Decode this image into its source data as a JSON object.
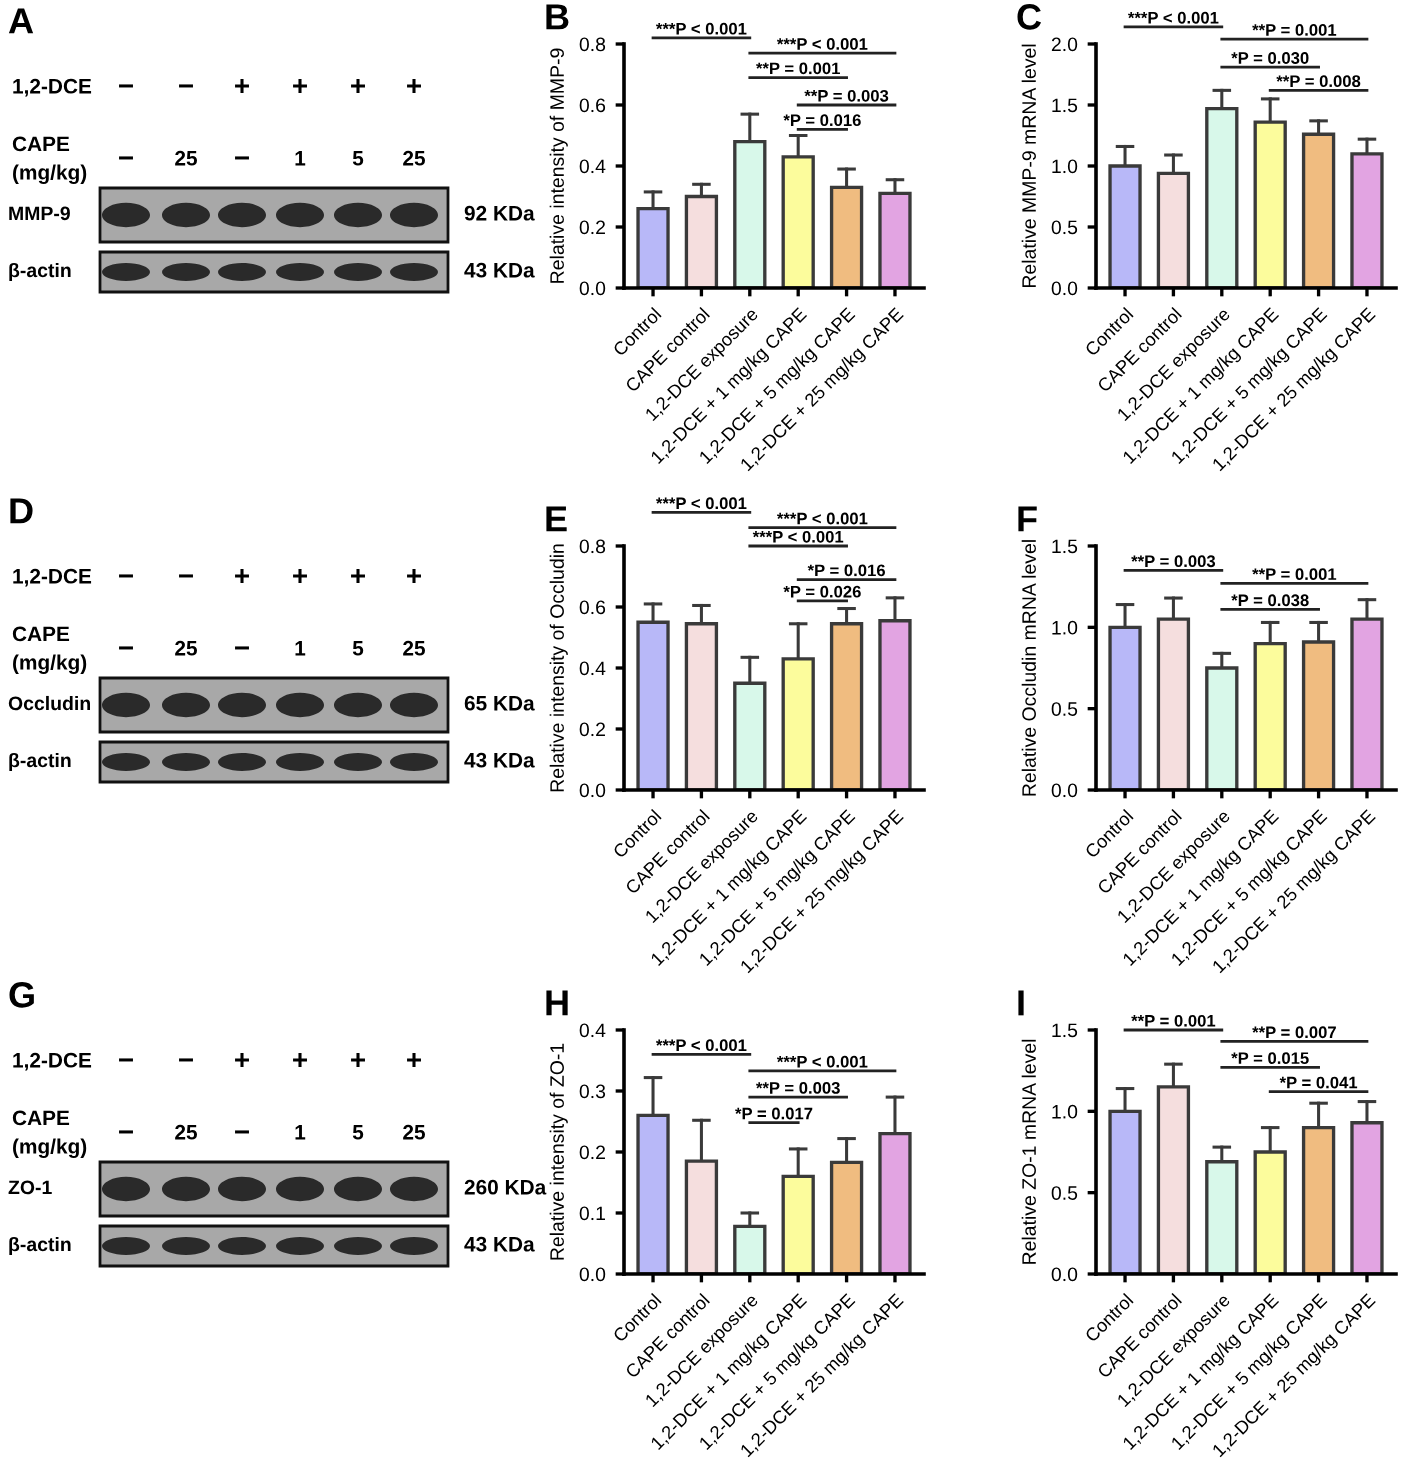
{
  "chart_data": [
    {
      "type": "other",
      "title": "A",
      "annotations": [
        "1,2-DCE",
        "−",
        "−",
        "+",
        "+",
        "+",
        "+",
        "CAPE\n(mg/kg)",
        "−",
        "25",
        "−",
        "1",
        "5",
        "25",
        "MMP-9",
        "92 KDa",
        "β-actin",
        "43 KDa"
      ]
    },
    {
      "type": "bar",
      "title": "B",
      "ylabel": "Relative intensity of MMP-9",
      "categories": [
        "Control",
        "CAPE control",
        "1,2-DCE exposure",
        "1,2-DCE + 1 mg/kg CAPE",
        "1,2-DCE + 5 mg/kg CAPE",
        "1,2-DCE + 25 mg/kg CAPE"
      ],
      "values": [
        0.26,
        0.3,
        0.48,
        0.43,
        0.33,
        0.31
      ],
      "colors": [
        "#b8b8f8",
        "#f5dede",
        "#d8f8ea",
        "#fcfc9c",
        "#f0bc80",
        "#e2a4e2"
      ],
      "errors": [
        [
          0.26,
          0.315
        ],
        [
          0.3,
          0.34
        ],
        [
          0.48,
          0.57
        ],
        [
          0.43,
          0.5
        ],
        [
          0.33,
          0.39
        ],
        [
          0.31,
          0.355
        ]
      ],
      "ylim": [
        0,
        0.8
      ],
      "yticks": [
        {
          "value": 0,
          "label": "0.0"
        },
        0.2,
        0.4,
        0.6,
        0.8
      ],
      "annotations": [
        "***P < 0.001",
        "***P < 0.001",
        "**P = 0.001",
        "**P = 0.003",
        "*P = 0.016"
      ]
    },
    {
      "type": "bar",
      "title": "C",
      "ylabel": "Relative MMP-9 mRNA level",
      "categories": [
        "Control",
        "CAPE control",
        "1,2-DCE exposure",
        "1,2-DCE + 1 mg/kg CAPE",
        "1,2-DCE + 5 mg/kg CAPE",
        "1,2-DCE + 25 mg/kg CAPE"
      ],
      "values": [
        1.0,
        0.94,
        1.47,
        1.36,
        1.26,
        1.1
      ],
      "colors": [
        "#b8b8f8",
        "#f5dede",
        "#d8f8ea",
        "#fcfc9c",
        "#f0bc80",
        "#e2a4e2"
      ],
      "errors": [
        [
          1.0,
          1.16
        ],
        [
          0.94,
          1.09
        ],
        [
          1.47,
          1.62
        ],
        [
          1.36,
          1.55
        ],
        [
          1.26,
          1.37
        ],
        [
          1.1,
          1.22
        ]
      ],
      "ylim": [
        0,
        2.0
      ],
      "yticks": [
        {
          "value": 0,
          "label": "0.0"
        },
        0.5,
        {
          "value": 1,
          "label": "1.0"
        },
        1.5,
        {
          "value": 2,
          "label": "2.0"
        }
      ],
      "annotations": [
        "***P < 0.001",
        "**P = 0.001",
        "*P = 0.030",
        "**P = 0.008"
      ]
    },
    {
      "type": "other",
      "title": "D",
      "annotations": [
        "1,2-DCE",
        "−",
        "−",
        "+",
        "+",
        "+",
        "+",
        "CAPE\n(mg/kg)",
        "−",
        "25",
        "−",
        "1",
        "5",
        "25",
        "Occludin",
        "65 KDa",
        "β-actin",
        "43 KDa"
      ]
    },
    {
      "type": "bar",
      "title": "E",
      "ylabel": "Relative intensity of Occludin",
      "categories": [
        "Control",
        "CAPE control",
        "1,2-DCE exposure",
        "1,2-DCE + 1 mg/kg CAPE",
        "1,2-DCE + 5 mg/kg CAPE",
        "1,2-DCE + 25 mg/kg CAPE"
      ],
      "values": [
        0.55,
        0.545,
        0.35,
        0.43,
        0.545,
        0.555
      ],
      "colors": [
        "#b8b8f8",
        "#f5dede",
        "#d8f8ea",
        "#fcfc9c",
        "#f0bc80",
        "#e2a4e2"
      ],
      "errors": [
        [
          0.55,
          0.61
        ],
        [
          0.545,
          0.605
        ],
        [
          0.35,
          0.435
        ],
        [
          0.43,
          0.545
        ],
        [
          0.545,
          0.595
        ],
        [
          0.555,
          0.63
        ]
      ],
      "ylim": [
        0,
        0.8
      ],
      "yticks": [
        {
          "value": 0,
          "label": "0.0"
        },
        0.2,
        0.4,
        0.6,
        0.8
      ],
      "annotations": [
        "***P < 0.001",
        "***P < 0.001",
        "***P < 0.001",
        "*P = 0.016",
        "*P = 0.026"
      ]
    },
    {
      "type": "bar",
      "title": "F",
      "ylabel": "Relative Occludin mRNA level",
      "categories": [
        "Control",
        "CAPE control",
        "1,2-DCE exposure",
        "1,2-DCE + 1 mg/kg CAPE",
        "1,2-DCE + 5 mg/kg CAPE",
        "1,2-DCE + 25 mg/kg CAPE"
      ],
      "values": [
        1.0,
        1.05,
        0.75,
        0.9,
        0.91,
        1.05
      ],
      "colors": [
        "#b8b8f8",
        "#f5dede",
        "#d8f8ea",
        "#fcfc9c",
        "#f0bc80",
        "#e2a4e2"
      ],
      "errors": [
        [
          1.0,
          1.14
        ],
        [
          1.05,
          1.18
        ],
        [
          0.75,
          0.84
        ],
        [
          0.9,
          1.03
        ],
        [
          0.91,
          1.03
        ],
        [
          1.05,
          1.17
        ]
      ],
      "ylim": [
        0,
        1.5
      ],
      "yticks": [
        {
          "value": 0,
          "label": "0.0"
        },
        0.5,
        {
          "value": 1,
          "label": "1.0"
        },
        1.5
      ],
      "annotations": [
        "**P = 0.003",
        "**P = 0.001",
        "*P = 0.038"
      ]
    },
    {
      "type": "other",
      "title": "G",
      "annotations": [
        "1,2-DCE",
        "−",
        "−",
        "+",
        "+",
        "+",
        "+",
        "CAPE\n(mg/kg)",
        "−",
        "25",
        "−",
        "1",
        "5",
        "25",
        "ZO-1",
        "260 KDa",
        "β-actin",
        "43 KDa"
      ]
    },
    {
      "type": "bar",
      "title": "H",
      "ylabel": "Relative intensity of ZO-1",
      "categories": [
        "Control",
        "CAPE control",
        "1,2-DCE exposure",
        "1,2-DCE + 1 mg/kg CAPE",
        "1,2-DCE + 5 mg/kg CAPE",
        "1,2-DCE + 25 mg/kg CAPE"
      ],
      "values": [
        0.26,
        0.185,
        0.078,
        0.16,
        0.183,
        0.23
      ],
      "colors": [
        "#b8b8f8",
        "#f5dede",
        "#d8f8ea",
        "#fcfc9c",
        "#f0bc80",
        "#e2a4e2"
      ],
      "errors": [
        [
          0.26,
          0.322
        ],
        [
          0.185,
          0.252
        ],
        [
          0.078,
          0.1
        ],
        [
          0.16,
          0.205
        ],
        [
          0.183,
          0.222
        ],
        [
          0.23,
          0.29
        ]
      ],
      "ylim": [
        0,
        0.4
      ],
      "yticks": [
        {
          "value": 0,
          "label": "0.0"
        },
        0.1,
        0.2,
        0.3,
        0.4
      ],
      "annotations": [
        "***P < 0.001",
        "***P < 0.001",
        "**P = 0.003",
        "*P = 0.017"
      ]
    },
    {
      "type": "bar",
      "title": "I",
      "ylabel": "Relative ZO-1 mRNA level",
      "categories": [
        "Control",
        "CAPE control",
        "1,2-DCE exposure",
        "1,2-DCE + 1 mg/kg CAPE",
        "1,2-DCE + 5 mg/kg CAPE",
        "1,2-DCE + 25 mg/kg CAPE"
      ],
      "values": [
        1.0,
        1.15,
        0.69,
        0.75,
        0.9,
        0.93
      ],
      "colors": [
        "#b8b8f8",
        "#f5dede",
        "#d8f8ea",
        "#fcfc9c",
        "#f0bc80",
        "#e2a4e2"
      ],
      "errors": [
        [
          1.0,
          1.14
        ],
        [
          1.15,
          1.29
        ],
        [
          0.69,
          0.78
        ],
        [
          0.75,
          0.9
        ],
        [
          0.9,
          1.05
        ],
        [
          0.93,
          1.06
        ]
      ],
      "ylim": [
        0,
        1.5
      ],
      "yticks": [
        {
          "value": 0,
          "label": "0.0"
        },
        0.5,
        {
          "value": 1,
          "label": "1.0"
        },
        1.5
      ],
      "annotations": [
        "**P = 0.001",
        "**P = 0.007",
        "*P = 0.015",
        "*P = 0.041"
      ]
    }
  ]
}
